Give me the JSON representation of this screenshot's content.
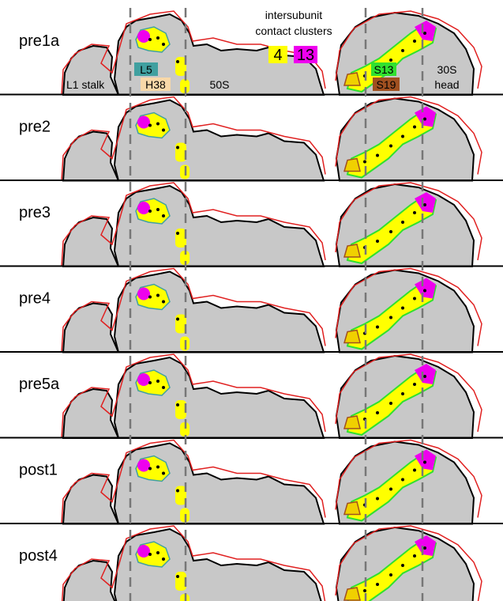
{
  "rows": [
    {
      "label": "pre1a"
    },
    {
      "label": "pre2"
    },
    {
      "label": "pre3"
    },
    {
      "label": "pre4"
    },
    {
      "label": "pre5a"
    },
    {
      "label": "post1"
    },
    {
      "label": "post4"
    }
  ],
  "legend": {
    "title_lines": [
      "intersubunit",
      "contact clusters"
    ],
    "items": [
      "4",
      "13"
    ]
  },
  "annotations": {
    "l5": "L5",
    "h38": "H38",
    "l1_stalk": "L1 stalk",
    "s50": "50S",
    "s13": "S13",
    "s19": "S19",
    "s30_lines": [
      "30S",
      "head"
    ]
  }
}
